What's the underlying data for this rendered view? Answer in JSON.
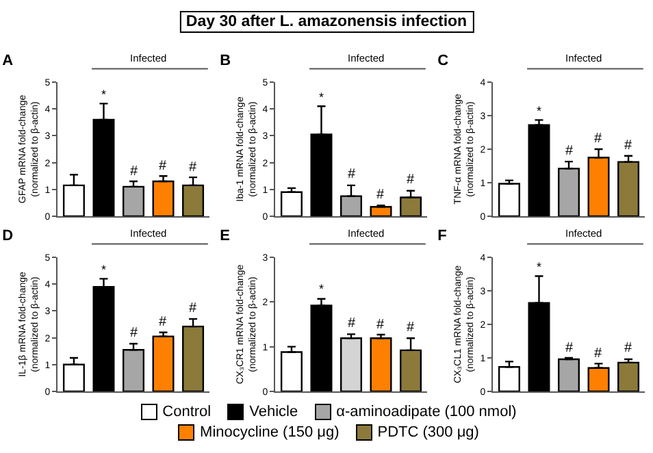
{
  "chart_data": [
    {
      "type": "other",
      "title": "Day 30 after L. amazonensis infection"
    },
    {
      "type": "bar",
      "title": "A",
      "ylabel": "GFAP mRNA fold-change\n(normalized to β-actin)",
      "categories": [
        null,
        null,
        null,
        null,
        null
      ],
      "ylim": [
        0,
        5
      ],
      "yticks": [
        0,
        1,
        2,
        3,
        4,
        5
      ],
      "grid": false,
      "annotations": [
        "Infected"
      ],
      "series": [
        {
          "color": "#ffffff",
          "values": [
            1.15,
            null,
            null,
            null,
            null
          ],
          "errors": [
            [
              1.15,
              1.55
            ],
            null,
            null,
            null,
            null
          ]
        },
        {
          "color": "#000000",
          "values": [
            null,
            3.6,
            null,
            null,
            null
          ],
          "errors": [
            null,
            [
              3.6,
              4.2
            ],
            null,
            null,
            null
          ],
          "value_labels": [
            null,
            "*",
            null,
            null,
            null
          ]
        },
        {
          "color": "#a6a6a6",
          "values": [
            null,
            null,
            1.1,
            null,
            null
          ],
          "errors": [
            null,
            null,
            [
              1.1,
              1.3
            ],
            null,
            null
          ],
          "value_labels": [
            null,
            null,
            "#",
            null,
            null
          ]
        },
        {
          "color": "#ff8000",
          "values": [
            null,
            null,
            null,
            1.3,
            null
          ],
          "errors": [
            null,
            null,
            null,
            [
              1.3,
              1.5
            ],
            null
          ],
          "value_labels": [
            null,
            null,
            null,
            "#",
            null
          ]
        },
        {
          "color": "#8b7a3a",
          "values": [
            null,
            null,
            null,
            null,
            1.15
          ],
          "errors": [
            null,
            null,
            null,
            null,
            [
              1.15,
              1.45
            ]
          ],
          "value_labels": [
            null,
            null,
            null,
            null,
            "#"
          ]
        }
      ]
    },
    {
      "type": "bar",
      "title": "B",
      "ylabel": "Iba-1 mRNA fold-change\n(normalized to β-actin)",
      "categories": [
        null,
        null,
        null,
        null,
        null
      ],
      "ylim": [
        0,
        5
      ],
      "yticks": [
        0,
        1,
        2,
        3,
        4,
        5
      ],
      "grid": false,
      "annotations": [
        "Infected"
      ],
      "series": [
        {
          "color": "#ffffff",
          "values": [
            0.9,
            null,
            null,
            null,
            null
          ],
          "errors": [
            [
              0.9,
              1.05
            ],
            null,
            null,
            null,
            null
          ]
        },
        {
          "color": "#000000",
          "values": [
            null,
            3.05,
            null,
            null,
            null
          ],
          "errors": [
            null,
            [
              3.05,
              4.1
            ],
            null,
            null,
            null
          ],
          "value_labels": [
            null,
            "*",
            null,
            null,
            null
          ]
        },
        {
          "color": "#a6a6a6",
          "values": [
            null,
            null,
            0.75,
            null,
            null
          ],
          "errors": [
            null,
            null,
            [
              0.75,
              1.15
            ],
            null,
            null
          ],
          "value_labels": [
            null,
            null,
            "#",
            null,
            null
          ]
        },
        {
          "color": "#ff8000",
          "values": [
            null,
            null,
            null,
            0.35,
            null
          ],
          "errors": [
            null,
            null,
            null,
            [
              0.35,
              0.4
            ],
            null
          ],
          "value_labels": [
            null,
            null,
            null,
            "#",
            null
          ]
        },
        {
          "color": "#8b7a3a",
          "values": [
            null,
            null,
            null,
            null,
            0.7
          ],
          "errors": [
            null,
            null,
            null,
            null,
            [
              0.7,
              0.95
            ]
          ],
          "value_labels": [
            null,
            null,
            null,
            null,
            "#"
          ]
        }
      ]
    },
    {
      "type": "bar",
      "title": "C",
      "ylabel": "TNF-α mRNA fold-change\n(normalized to β-actin)",
      "categories": [
        null,
        null,
        null,
        null,
        null
      ],
      "ylim": [
        0,
        4
      ],
      "yticks": [
        0,
        1,
        2,
        3,
        4
      ],
      "grid": false,
      "annotations": [
        "Infected"
      ],
      "series": [
        {
          "color": "#ffffff",
          "values": [
            0.97,
            null,
            null,
            null,
            null
          ],
          "errors": [
            [
              0.97,
              1.07
            ],
            null,
            null,
            null,
            null
          ]
        },
        {
          "color": "#000000",
          "values": [
            null,
            2.72,
            null,
            null,
            null
          ],
          "errors": [
            null,
            [
              2.72,
              2.87
            ],
            null,
            null,
            null
          ],
          "value_labels": [
            null,
            "*",
            null,
            null,
            null
          ]
        },
        {
          "color": "#a6a6a6",
          "values": [
            null,
            null,
            1.42,
            null,
            null
          ],
          "errors": [
            null,
            null,
            [
              1.42,
              1.63
            ],
            null,
            null
          ],
          "value_labels": [
            null,
            null,
            "#",
            null,
            null
          ]
        },
        {
          "color": "#ff8000",
          "values": [
            null,
            null,
            null,
            1.75,
            null
          ],
          "errors": [
            null,
            null,
            null,
            [
              1.75,
              2.0
            ],
            null
          ],
          "value_labels": [
            null,
            null,
            null,
            "#",
            null
          ]
        },
        {
          "color": "#8b7a3a",
          "values": [
            null,
            null,
            null,
            null,
            1.62
          ],
          "errors": [
            null,
            null,
            null,
            null,
            [
              1.62,
              1.8
            ]
          ],
          "value_labels": [
            null,
            null,
            null,
            null,
            "#"
          ]
        }
      ]
    },
    {
      "type": "bar",
      "title": "D",
      "ylabel": "IL-1β mRNA fold-change\n(normalized to β-actin)",
      "categories": [
        null,
        null,
        null,
        null,
        null
      ],
      "ylim": [
        0,
        5
      ],
      "yticks": [
        0,
        1,
        2,
        3,
        4,
        5
      ],
      "grid": false,
      "annotations": [
        "Infected"
      ],
      "series": [
        {
          "color": "#ffffff",
          "values": [
            1.0,
            null,
            null,
            null,
            null
          ],
          "errors": [
            [
              1.0,
              1.25
            ],
            null,
            null,
            null,
            null
          ]
        },
        {
          "color": "#000000",
          "values": [
            null,
            3.9,
            null,
            null,
            null
          ],
          "errors": [
            null,
            [
              3.9,
              4.2
            ],
            null,
            null,
            null
          ],
          "value_labels": [
            null,
            "*",
            null,
            null,
            null
          ]
        },
        {
          "color": "#a6a6a6",
          "values": [
            null,
            null,
            1.55,
            null,
            null
          ],
          "errors": [
            null,
            null,
            [
              1.55,
              1.78
            ],
            null,
            null
          ],
          "value_labels": [
            null,
            null,
            "#",
            null,
            null
          ]
        },
        {
          "color": "#ff8000",
          "values": [
            null,
            null,
            null,
            2.05,
            null
          ],
          "errors": [
            null,
            null,
            null,
            [
              2.05,
              2.2
            ],
            null
          ],
          "value_labels": [
            null,
            null,
            null,
            "#",
            null
          ]
        },
        {
          "color": "#8b7a3a",
          "values": [
            null,
            null,
            null,
            null,
            2.42
          ],
          "errors": [
            null,
            null,
            null,
            null,
            [
              2.42,
              2.7
            ]
          ],
          "value_labels": [
            null,
            null,
            null,
            null,
            "#"
          ]
        }
      ]
    },
    {
      "type": "bar",
      "title": "E",
      "ylabel": "CX₃CR1 mRNA fold-change\n(normalized to β-actin)",
      "categories": [
        null,
        null,
        null,
        null,
        null
      ],
      "ylim": [
        0,
        3
      ],
      "yticks": [
        0,
        1,
        2,
        3
      ],
      "grid": false,
      "annotations": [
        "Infected"
      ],
      "series": [
        {
          "color": "#ffffff",
          "values": [
            0.88,
            null,
            null,
            null,
            null
          ],
          "errors": [
            [
              0.88,
              1.0
            ],
            null,
            null,
            null,
            null
          ]
        },
        {
          "color": "#000000",
          "values": [
            null,
            1.92,
            null,
            null,
            null
          ],
          "errors": [
            null,
            [
              1.92,
              2.07
            ],
            null,
            null,
            null
          ],
          "value_labels": [
            null,
            "*",
            null,
            null,
            null
          ]
        },
        {
          "color": "#d4d4d4",
          "values": [
            null,
            null,
            1.19,
            null,
            null
          ],
          "errors": [
            null,
            null,
            [
              1.19,
              1.28
            ],
            null,
            null
          ],
          "value_labels": [
            null,
            null,
            "#",
            null,
            null
          ]
        },
        {
          "color": "#ff8000",
          "values": [
            null,
            null,
            null,
            1.19,
            null
          ],
          "errors": [
            null,
            null,
            null,
            [
              1.19,
              1.27
            ],
            null
          ],
          "value_labels": [
            null,
            null,
            null,
            "#",
            null
          ]
        },
        {
          "color": "#8b7a3a",
          "values": [
            null,
            null,
            null,
            null,
            0.92
          ],
          "errors": [
            null,
            null,
            null,
            null,
            [
              0.92,
              1.19
            ]
          ],
          "value_labels": [
            null,
            null,
            null,
            null,
            "#"
          ]
        }
      ]
    },
    {
      "type": "bar",
      "title": "F",
      "ylabel": "CX₃CL1 mRNA fold-change\n(normalized to β-actin)",
      "categories": [
        null,
        null,
        null,
        null,
        null
      ],
      "ylim": [
        0,
        4
      ],
      "yticks": [
        0,
        1,
        2,
        3,
        4
      ],
      "grid": false,
      "legend": "bottom",
      "annotations": [
        "Infected"
      ],
      "series": [
        {
          "name": "Control",
          "color": "#ffffff",
          "values": [
            0.73,
            null,
            null,
            null,
            null
          ],
          "errors": [
            [
              0.73,
              0.89
            ],
            null,
            null,
            null,
            null
          ]
        },
        {
          "name": "Vehicle",
          "color": "#000000",
          "values": [
            null,
            2.64,
            null,
            null,
            null
          ],
          "errors": [
            null,
            [
              2.64,
              3.44
            ],
            null,
            null,
            null
          ],
          "value_labels": [
            null,
            "*",
            null,
            null,
            null
          ]
        },
        {
          "name": "α-aminoadipate (100 nmol)",
          "color": "#a6a6a6",
          "values": [
            null,
            null,
            0.96,
            null,
            null
          ],
          "errors": [
            null,
            null,
            [
              0.96,
              1.0
            ],
            null,
            null
          ],
          "value_labels": [
            null,
            null,
            "#",
            null,
            null
          ]
        },
        {
          "name": "Minocycline (150 μg)",
          "color": "#ff8000",
          "values": [
            null,
            null,
            null,
            0.7,
            null
          ],
          "errors": [
            null,
            null,
            null,
            [
              0.7,
              0.83
            ],
            null
          ],
          "value_labels": [
            null,
            null,
            null,
            "#",
            null
          ]
        },
        {
          "name": "PDTC (300 μg)",
          "color": "#8b7a3a",
          "values": [
            null,
            null,
            null,
            null,
            0.86
          ],
          "errors": [
            null,
            null,
            null,
            null,
            [
              0.86,
              0.96
            ]
          ],
          "value_labels": [
            null,
            null,
            null,
            null,
            "#"
          ]
        }
      ]
    }
  ]
}
